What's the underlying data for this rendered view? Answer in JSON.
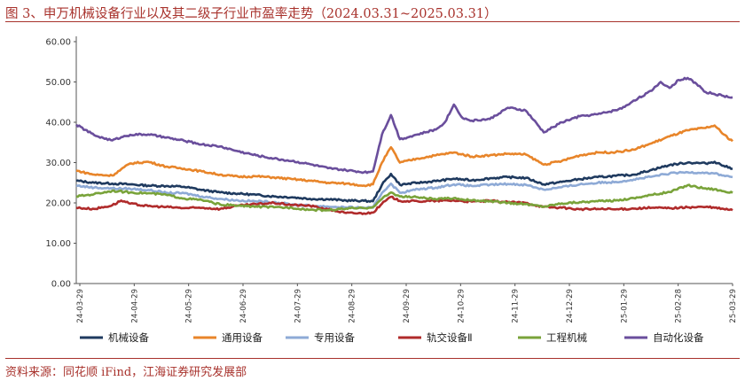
{
  "header": {
    "title": "图 3、申万机械设备行业以及其二级子行业市盈率走势（2024.03.31~2025.03.31）"
  },
  "footer": {
    "source": "资料来源：同花顺 iFind，江海证券研究发展部"
  },
  "chart_data": {
    "type": "line",
    "title": "",
    "xlabel": "",
    "ylabel": "",
    "ylim": [
      0,
      60
    ],
    "yticks": [
      "0.00",
      "10.00",
      "20.00",
      "30.00",
      "40.00",
      "50.00",
      "60.00"
    ],
    "x_tick_labels": [
      "24-03-29",
      "24-04-29",
      "24-05-29",
      "24-06-29",
      "24-07-29",
      "24-08-29",
      "24-09-29",
      "24-10-29",
      "24-11-29",
      "24-12-29",
      "25-01-29",
      "25-02-28",
      "25-03-29"
    ],
    "x_domain": [
      0,
      365
    ],
    "legend_position": "bottom",
    "grid": false,
    "series": [
      {
        "name": "机械设备",
        "color": "#1f3a5f",
        "points": [
          [
            0,
            25.5
          ],
          [
            10,
            25
          ],
          [
            20,
            24.8
          ],
          [
            30,
            24.6
          ],
          [
            40,
            24.3
          ],
          [
            50,
            24.2
          ],
          [
            60,
            24
          ],
          [
            70,
            23.2
          ],
          [
            80,
            22.6
          ],
          [
            90,
            22.3
          ],
          [
            100,
            22
          ],
          [
            110,
            21.6
          ],
          [
            120,
            21.4
          ],
          [
            130,
            21
          ],
          [
            140,
            20.9
          ],
          [
            150,
            20.6
          ],
          [
            160,
            20.5
          ],
          [
            165,
            20.4
          ],
          [
            170,
            24.5
          ],
          [
            175,
            27.2
          ],
          [
            180,
            24.5
          ],
          [
            190,
            25
          ],
          [
            200,
            25.4
          ],
          [
            210,
            26
          ],
          [
            220,
            25.6
          ],
          [
            230,
            26.1
          ],
          [
            240,
            26.4
          ],
          [
            250,
            26.2
          ],
          [
            260,
            24.6
          ],
          [
            270,
            25.2
          ],
          [
            280,
            25.9
          ],
          [
            290,
            26.4
          ],
          [
            300,
            26.7
          ],
          [
            310,
            27
          ],
          [
            320,
            28.2
          ],
          [
            330,
            29.4
          ],
          [
            340,
            30
          ],
          [
            350,
            29.8
          ],
          [
            355,
            30.2
          ],
          [
            360,
            29.2
          ],
          [
            365,
            28.5
          ]
        ]
      },
      {
        "name": "通用设备",
        "color": "#e8852a",
        "points": [
          [
            0,
            28
          ],
          [
            10,
            27
          ],
          [
            20,
            26.8
          ],
          [
            30,
            29.8
          ],
          [
            40,
            30.2
          ],
          [
            50,
            29
          ],
          [
            60,
            28.5
          ],
          [
            70,
            27.8
          ],
          [
            80,
            27
          ],
          [
            90,
            26.5
          ],
          [
            100,
            26.6
          ],
          [
            110,
            26.3
          ],
          [
            120,
            25.9
          ],
          [
            130,
            25.5
          ],
          [
            140,
            25
          ],
          [
            150,
            24.8
          ],
          [
            160,
            24.3
          ],
          [
            165,
            24.6
          ],
          [
            170,
            30
          ],
          [
            175,
            33.8
          ],
          [
            180,
            30
          ],
          [
            190,
            31
          ],
          [
            200,
            31.8
          ],
          [
            210,
            32.5
          ],
          [
            220,
            31.5
          ],
          [
            230,
            31.8
          ],
          [
            240,
            32.2
          ],
          [
            250,
            32
          ],
          [
            260,
            29.5
          ],
          [
            270,
            30.4
          ],
          [
            280,
            31.8
          ],
          [
            290,
            32.5
          ],
          [
            300,
            32.6
          ],
          [
            310,
            33.2
          ],
          [
            320,
            34.8
          ],
          [
            330,
            36.5
          ],
          [
            340,
            38
          ],
          [
            350,
            38.6
          ],
          [
            355,
            39.2
          ],
          [
            360,
            37
          ],
          [
            365,
            35.3
          ]
        ]
      },
      {
        "name": "专用设备",
        "color": "#8eaad6",
        "points": [
          [
            0,
            24.3
          ],
          [
            10,
            23.8
          ],
          [
            20,
            23.6
          ],
          [
            30,
            23.5
          ],
          [
            40,
            23.2
          ],
          [
            50,
            22.5
          ],
          [
            60,
            22.4
          ],
          [
            70,
            21.6
          ],
          [
            80,
            21
          ],
          [
            90,
            20.6
          ],
          [
            100,
            20.4
          ],
          [
            110,
            20.2
          ],
          [
            120,
            19.6
          ],
          [
            130,
            19.3
          ],
          [
            140,
            19.1
          ],
          [
            150,
            18.9
          ],
          [
            160,
            18.8
          ],
          [
            165,
            18.8
          ],
          [
            170,
            22.5
          ],
          [
            175,
            24.8
          ],
          [
            180,
            22.5
          ],
          [
            190,
            23.4
          ],
          [
            200,
            23.8
          ],
          [
            210,
            24.6
          ],
          [
            220,
            24.2
          ],
          [
            230,
            24.5
          ],
          [
            240,
            24.7
          ],
          [
            250,
            24.5
          ],
          [
            260,
            23.3
          ],
          [
            270,
            23.9
          ],
          [
            280,
            24.6
          ],
          [
            290,
            25
          ],
          [
            300,
            25.2
          ],
          [
            310,
            25.8
          ],
          [
            320,
            26.5
          ],
          [
            330,
            27.3
          ],
          [
            340,
            27.6
          ],
          [
            350,
            27.5
          ],
          [
            355,
            27.3
          ],
          [
            360,
            26.8
          ],
          [
            365,
            26.4
          ]
        ]
      },
      {
        "name": "轨交设备Ⅱ",
        "color": "#b02b2b",
        "points": [
          [
            0,
            18.8
          ],
          [
            10,
            18.5
          ],
          [
            20,
            19.4
          ],
          [
            25,
            20.6
          ],
          [
            30,
            19.8
          ],
          [
            40,
            19.2
          ],
          [
            50,
            19
          ],
          [
            60,
            18.7
          ],
          [
            70,
            18.8
          ],
          [
            80,
            18.5
          ],
          [
            90,
            19.3
          ],
          [
            100,
            19.7
          ],
          [
            110,
            20
          ],
          [
            120,
            19.5
          ],
          [
            130,
            19.3
          ],
          [
            140,
            18.4
          ],
          [
            150,
            17.5
          ],
          [
            160,
            17.4
          ],
          [
            165,
            17.6
          ],
          [
            170,
            19.8
          ],
          [
            175,
            21.5
          ],
          [
            180,
            20.5
          ],
          [
            190,
            20.4
          ],
          [
            200,
            20.5
          ],
          [
            210,
            20.6
          ],
          [
            220,
            20.3
          ],
          [
            230,
            20.5
          ],
          [
            240,
            20.2
          ],
          [
            250,
            20
          ],
          [
            260,
            19
          ],
          [
            270,
            18.8
          ],
          [
            280,
            18.4
          ],
          [
            290,
            18.5
          ],
          [
            300,
            18.4
          ],
          [
            310,
            18.6
          ],
          [
            320,
            18.8
          ],
          [
            330,
            18.7
          ],
          [
            340,
            18.9
          ],
          [
            350,
            19
          ],
          [
            355,
            18.8
          ],
          [
            360,
            18.5
          ],
          [
            365,
            18.2
          ]
        ]
      },
      {
        "name": "工程机械",
        "color": "#79a33a",
        "points": [
          [
            0,
            21.6
          ],
          [
            10,
            22.2
          ],
          [
            20,
            23
          ],
          [
            30,
            22.6
          ],
          [
            40,
            22.4
          ],
          [
            50,
            22
          ],
          [
            60,
            21.1
          ],
          [
            70,
            20.7
          ],
          [
            80,
            19.6
          ],
          [
            90,
            19.3
          ],
          [
            100,
            19.1
          ],
          [
            110,
            18.9
          ],
          [
            120,
            18.8
          ],
          [
            130,
            18.3
          ],
          [
            140,
            18.2
          ],
          [
            150,
            18.6
          ],
          [
            160,
            18.7
          ],
          [
            165,
            19
          ],
          [
            170,
            21
          ],
          [
            175,
            22.6
          ],
          [
            180,
            21.6
          ],
          [
            190,
            21.4
          ],
          [
            200,
            20.9
          ],
          [
            210,
            21.2
          ],
          [
            220,
            20.6
          ],
          [
            230,
            20.4
          ],
          [
            240,
            20
          ],
          [
            250,
            19.7
          ],
          [
            260,
            19.1
          ],
          [
            270,
            19.9
          ],
          [
            280,
            20.2
          ],
          [
            290,
            20.4
          ],
          [
            300,
            20.6
          ],
          [
            310,
            21.2
          ],
          [
            320,
            22
          ],
          [
            330,
            22.7
          ],
          [
            340,
            24.4
          ],
          [
            350,
            23.6
          ],
          [
            355,
            23.4
          ],
          [
            360,
            22.9
          ],
          [
            365,
            22.5
          ]
        ]
      },
      {
        "name": "自动化设备",
        "color": "#6a4e9c",
        "points": [
          [
            0,
            39.4
          ],
          [
            10,
            36.8
          ],
          [
            15,
            36.1
          ],
          [
            20,
            35.5
          ],
          [
            25,
            36.3
          ],
          [
            30,
            36.9
          ],
          [
            40,
            37
          ],
          [
            50,
            36.2
          ],
          [
            60,
            35.4
          ],
          [
            70,
            34.5
          ],
          [
            80,
            34
          ],
          [
            90,
            32.8
          ],
          [
            100,
            31.8
          ],
          [
            110,
            31
          ],
          [
            120,
            30.4
          ],
          [
            130,
            29.6
          ],
          [
            140,
            28.6
          ],
          [
            150,
            28.1
          ],
          [
            160,
            27.6
          ],
          [
            165,
            27.8
          ],
          [
            170,
            37
          ],
          [
            175,
            41.8
          ],
          [
            180,
            35.8
          ],
          [
            190,
            37
          ],
          [
            200,
            38.2
          ],
          [
            205,
            40
          ],
          [
            210,
            44.4
          ],
          [
            215,
            41
          ],
          [
            220,
            40.4
          ],
          [
            230,
            40.8
          ],
          [
            240,
            43.6
          ],
          [
            250,
            42.9
          ],
          [
            260,
            37.5
          ],
          [
            270,
            40
          ],
          [
            280,
            41.5
          ],
          [
            290,
            42
          ],
          [
            300,
            43
          ],
          [
            305,
            43.8
          ],
          [
            310,
            45.4
          ],
          [
            320,
            47.8
          ],
          [
            325,
            50
          ],
          [
            330,
            48.5
          ],
          [
            335,
            50.5
          ],
          [
            340,
            51
          ],
          [
            345,
            49.5
          ],
          [
            350,
            47.5
          ],
          [
            355,
            47
          ],
          [
            360,
            46.5
          ],
          [
            365,
            46.2
          ]
        ]
      }
    ]
  }
}
